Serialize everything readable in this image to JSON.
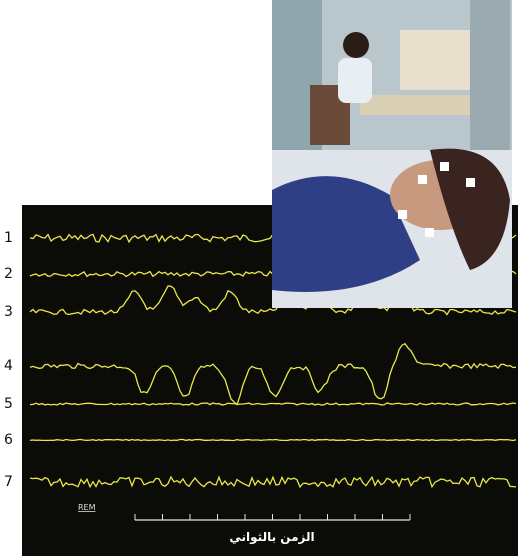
{
  "channels": [
    "1",
    "2",
    "3",
    "4",
    "5",
    "6",
    "7"
  ],
  "rem_label": "REM",
  "time_axis_label": "الزمن بالثواني"
}
